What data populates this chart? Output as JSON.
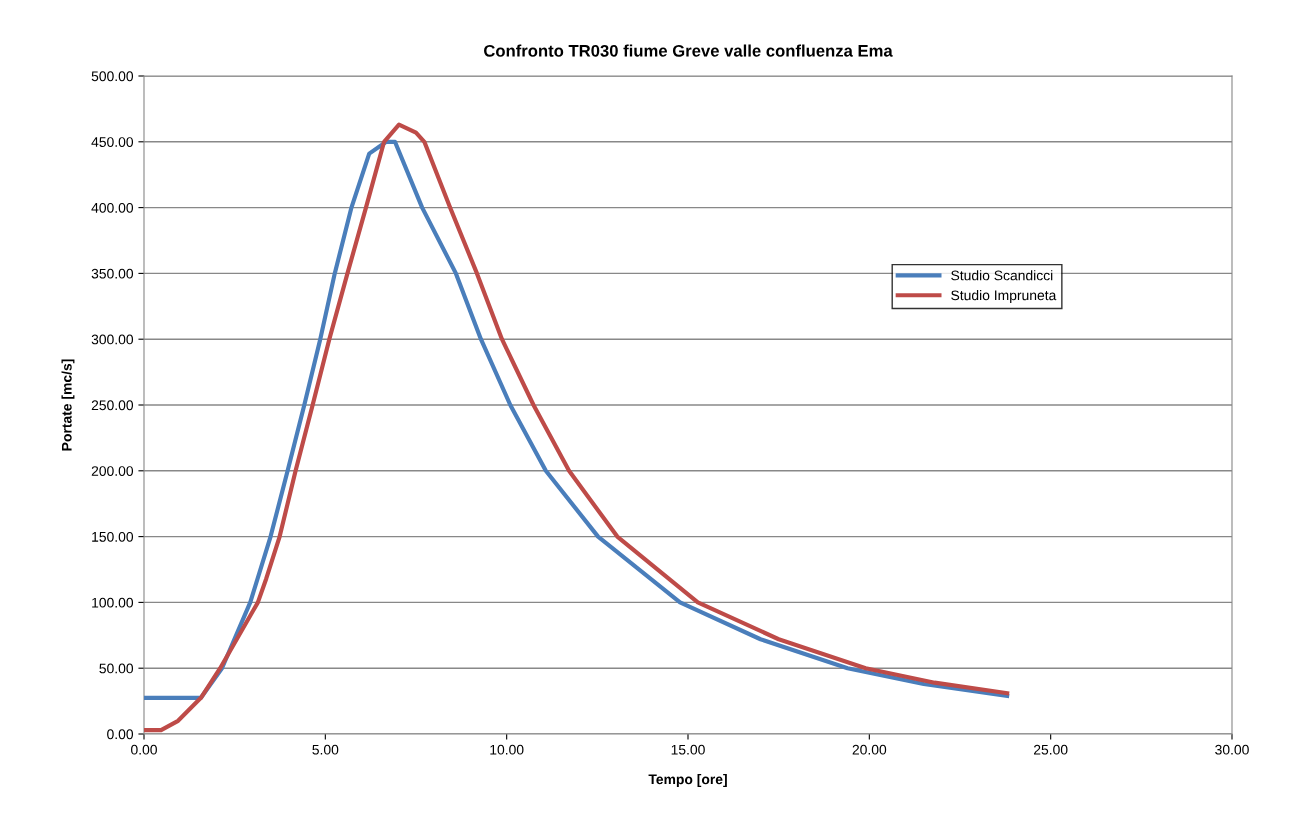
{
  "chart_data": {
    "type": "line",
    "title": "Confronto TR030 fiume Greve valle confluenza Ema",
    "xlabel": "Tempo [ore]",
    "ylabel": "Portate [mc/s]",
    "xlim": [
      0,
      30
    ],
    "ylim": [
      0,
      500
    ],
    "xticks": [
      {
        "value": 0,
        "label": "0.00"
      },
      {
        "value": 5,
        "label": "5.00"
      },
      {
        "value": 10,
        "label": "10.00"
      },
      {
        "value": 15,
        "label": "15.00"
      },
      {
        "value": 20,
        "label": "20.00"
      },
      {
        "value": 25,
        "label": "25.00"
      },
      {
        "value": 30,
        "label": "30.00"
      }
    ],
    "yticks": [
      {
        "value": 0,
        "label": "0.00"
      },
      {
        "value": 50,
        "label": "50.00"
      },
      {
        "value": 100,
        "label": "100.00"
      },
      {
        "value": 150,
        "label": "150.00"
      },
      {
        "value": 200,
        "label": "200.00"
      },
      {
        "value": 250,
        "label": "250.00"
      },
      {
        "value": 300,
        "label": "300.00"
      },
      {
        "value": 350,
        "label": "350.00"
      },
      {
        "value": 400,
        "label": "400.00"
      },
      {
        "value": 450,
        "label": "450.00"
      },
      {
        "value": 500,
        "label": "500.00"
      }
    ],
    "grid": "y",
    "legend": "right",
    "marker": "none",
    "line_style": "solid",
    "series": [
      {
        "name": "Studio Scandicci",
        "color": "#4a7ebb",
        "x": [
          0,
          1.57,
          2.15,
          2.93,
          3.49,
          3.96,
          4.42,
          4.86,
          5.26,
          5.72,
          6.21,
          6.68,
          6.92,
          7.67,
          8.6,
          9.29,
          10.1,
          11.08,
          12.52,
          14.78,
          17,
          19.4,
          21.5,
          23.8
        ],
        "values": [
          27.5,
          27.5,
          50,
          100,
          150,
          200,
          250,
          300,
          350,
          400,
          441,
          450,
          450,
          400,
          350,
          300,
          250,
          200,
          150,
          100,
          72,
          50,
          38,
          29
        ]
      },
      {
        "name": "Studio Impruneta",
        "color": "#be4b48",
        "x": [
          0,
          0.47,
          0.94,
          1.57,
          2.1,
          3.14,
          3.37,
          3.74,
          4.18,
          4.65,
          5.11,
          5.61,
          6.12,
          6.62,
          7.03,
          7.5,
          7.73,
          8.44,
          9.18,
          9.87,
          10.74,
          11.72,
          13.05,
          15.27,
          17.5,
          19.9,
          21.8,
          23.8
        ],
        "values": [
          3,
          3,
          10,
          27.5,
          50,
          100,
          118,
          150,
          200,
          250,
          300,
          350,
          400,
          450,
          463,
          457,
          450,
          400,
          350,
          300,
          250,
          200,
          150,
          100,
          72,
          50,
          39,
          31
        ]
      }
    ]
  }
}
